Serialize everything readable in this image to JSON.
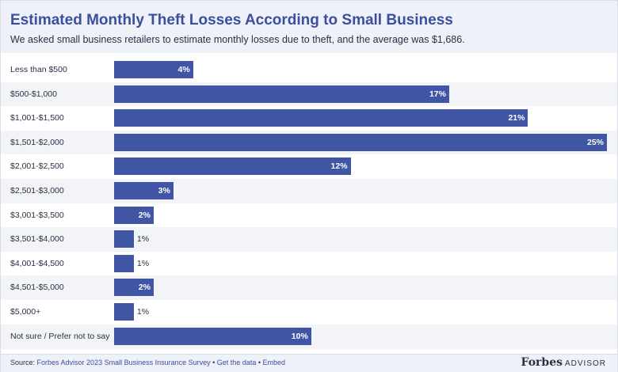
{
  "chart_data": {
    "type": "bar",
    "orientation": "horizontal",
    "title": "Estimated Monthly Theft Losses According to Small Business",
    "subtitle": "We asked small business retailers to estimate monthly losses due to theft, and the average was $1,686.",
    "categories": [
      "Less than $500",
      "$500-$1,000",
      "$1,001-$1,500",
      "$1,501-$2,000",
      "$2,001-$2,500",
      "$2,501-$3,000",
      "$3,001-$3,500",
      "$3,501-$4,000",
      "$4,001-$4,500",
      "$4,501-$5,000",
      "$5,000+",
      "Not sure / Prefer not to say"
    ],
    "values": [
      4,
      17,
      21,
      25,
      12,
      3,
      2,
      1,
      1,
      2,
      1,
      10
    ],
    "labels": [
      "4%",
      "17%",
      "21%",
      "25%",
      "12%",
      "3%",
      "2%",
      "1%",
      "1%",
      "2%",
      "1%",
      "10%"
    ],
    "xlim": [
      0,
      25
    ],
    "xlabel": "",
    "ylabel": "",
    "bar_color": "#4155a5"
  },
  "footer": {
    "source_prefix": "Source: ",
    "source_text": "Forbes Advisor 2023 Small Business Insurance Survey",
    "sep": " • ",
    "get_data": "Get the data",
    "embed": "Embed"
  },
  "logo": {
    "brand": "Forbes",
    "sub": "ADVISOR"
  }
}
